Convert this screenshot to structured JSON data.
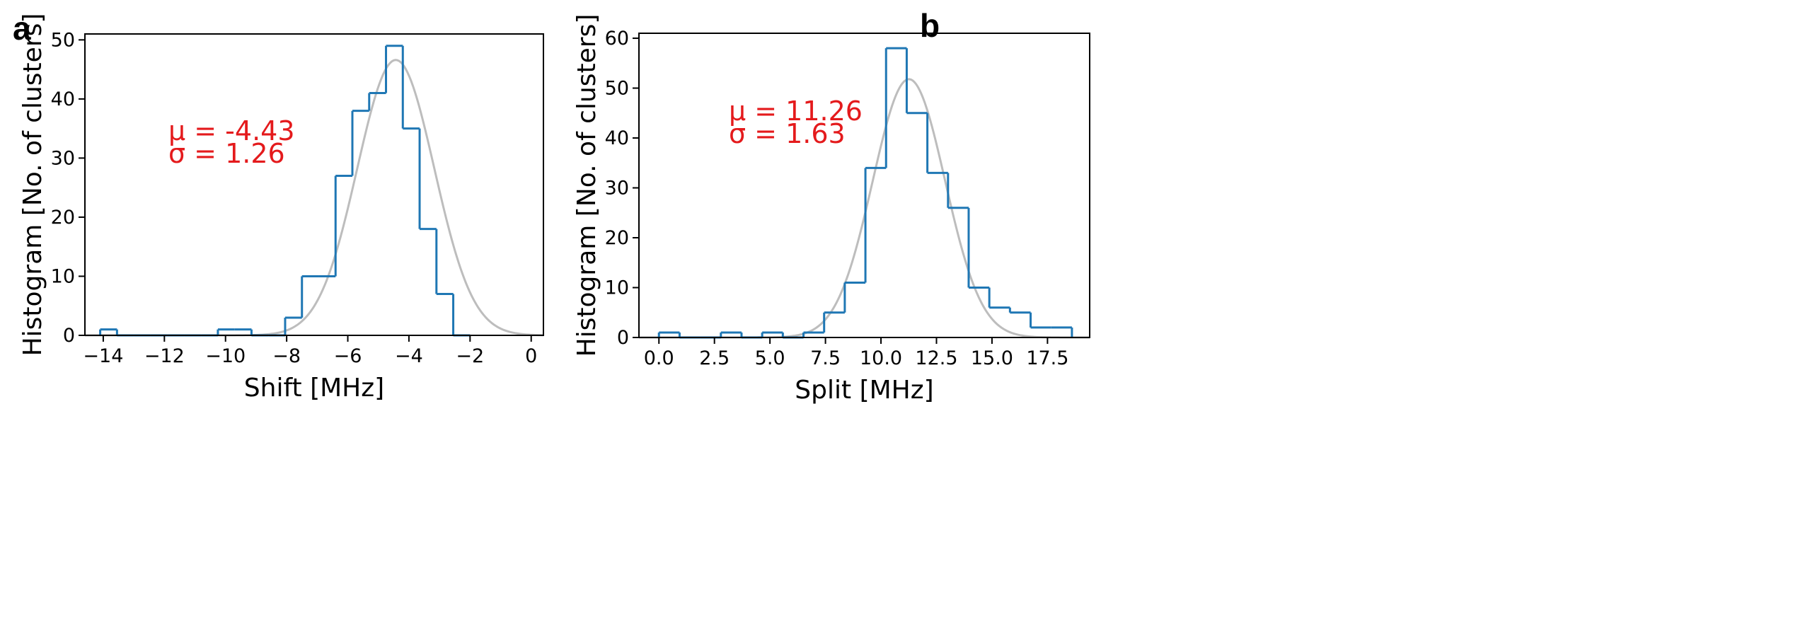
{
  "chart_data": [
    {
      "panel": "a",
      "type": "histogram",
      "xlabel": "Shift [MHz]",
      "ylabel": "Histogram [No. of clusters]",
      "xlim": [
        -14.6,
        0.4
      ],
      "ylim": [
        0,
        51
      ],
      "xticks": [
        -14,
        -12,
        -10,
        -8,
        -6,
        -4,
        -2,
        0
      ],
      "xtick_labels": [
        "−14",
        "−12",
        "−10",
        "−8",
        "−6",
        "−4",
        "−2",
        "0"
      ],
      "yticks": [
        0,
        10,
        20,
        30,
        40,
        50
      ],
      "ytick_labels": [
        "0",
        "10",
        "20",
        "30",
        "40",
        "50"
      ],
      "bin_edges": [
        -14.1,
        -13.55,
        -13.0,
        -12.45,
        -11.9,
        -11.35,
        -10.8,
        -10.25,
        -9.7,
        -9.15,
        -8.6,
        -8.05,
        -7.5,
        -6.95,
        -6.4,
        -5.85,
        -5.3,
        -4.75,
        -4.2,
        -3.65,
        -3.1,
        -2.55,
        -2.0
      ],
      "counts": [
        1,
        0,
        0,
        0,
        0,
        0,
        0,
        1,
        1,
        0,
        0,
        3,
        10,
        10,
        27,
        38,
        41,
        49,
        35,
        18,
        7,
        0
      ],
      "fit": {
        "mu": -4.43,
        "sigma": 1.26,
        "peak": 46.6
      },
      "annotation": {
        "mu_text": "μ = -4.43",
        "sigma_text": "σ = 1.26",
        "color": "#e41a1c"
      },
      "hist_color": "#1f77b4",
      "fit_color": "#bdbdbd"
    },
    {
      "panel": "b",
      "type": "histogram",
      "xlabel": "Split [MHz]",
      "ylabel": "Histogram [No. of clusters]",
      "xlim": [
        -0.9,
        19.4
      ],
      "ylim": [
        0,
        61
      ],
      "xticks": [
        0.0,
        2.5,
        5.0,
        7.5,
        10.0,
        12.5,
        15.0,
        17.5
      ],
      "xtick_labels": [
        "0.0",
        "2.5",
        "5.0",
        "7.5",
        "10.0",
        "12.5",
        "15.0",
        "17.5"
      ],
      "yticks": [
        0,
        10,
        20,
        30,
        40,
        50,
        60
      ],
      "ytick_labels": [
        "0",
        "10",
        "20",
        "30",
        "40",
        "50",
        "60"
      ],
      "bin_edges": [
        0.0,
        0.93,
        1.86,
        2.79,
        3.72,
        4.65,
        5.58,
        6.51,
        7.44,
        8.37,
        9.3,
        10.23,
        11.16,
        12.09,
        13.02,
        13.95,
        14.88,
        15.81,
        16.74,
        17.67,
        18.6
      ],
      "counts": [
        1,
        0,
        0,
        1,
        0,
        1,
        0,
        1,
        5,
        11,
        34,
        58,
        45,
        33,
        26,
        10,
        6,
        5,
        2,
        2
      ],
      "fit": {
        "mu": 11.26,
        "sigma": 1.63,
        "peak": 51.8
      },
      "annotation": {
        "mu_text": "μ = 11.26",
        "sigma_text": "σ = 1.63",
        "color": "#e41a1c"
      },
      "hist_color": "#1f77b4",
      "fit_color": "#bdbdbd"
    }
  ]
}
